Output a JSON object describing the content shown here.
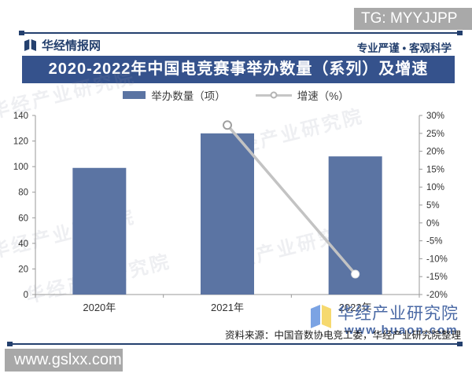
{
  "page": {
    "tg_badge": "TG: MYYJJPP",
    "corner_watermark": "www.gslxx.com"
  },
  "header": {
    "brand": "华经情报网",
    "tagline": "专业严谨 • 客观科学"
  },
  "title": "2020-2022年中国电竞赛事举办数量（系列）及增速",
  "legend": {
    "bar_label": "举办数量（项）",
    "line_label": "增速（%）"
  },
  "chart_data": {
    "type": "bar",
    "title": "2020-2022年中国电竞赛事举办数量（系列）及增速",
    "categories": [
      "2020年",
      "2021年",
      "2022年"
    ],
    "series": [
      {
        "name": "举办数量（项）",
        "type": "bar",
        "axis": "left",
        "color": "#5b74a3",
        "values": [
          99,
          126,
          108
        ]
      },
      {
        "name": "增速（%）",
        "type": "line",
        "axis": "right",
        "color": "#c3c3c3",
        "values": [
          null,
          27.3,
          -14.3
        ]
      }
    ],
    "left_axis": {
      "min": 0,
      "max": 140,
      "step": 20,
      "ticks": [
        0,
        20,
        40,
        60,
        80,
        100,
        120,
        140
      ]
    },
    "right_axis": {
      "min": -20,
      "max": 30,
      "step": 5,
      "ticks_top_down": [
        "30%",
        "25%",
        "20%",
        "15%",
        "10%",
        "5%",
        "0%",
        "-5%",
        "-10%",
        "-15%",
        "-20%"
      ]
    },
    "grid": false,
    "legend_position": "top"
  },
  "watermark": {
    "text": "华经产业研究院"
  },
  "footer": {
    "source": "资料来源：中国音数协电竞工委，华经产业研究院整理",
    "brand_name": "华经产业研究院",
    "brand_site": "www.huaon.com"
  },
  "colors": {
    "banner_bg": "#35528c",
    "bar": "#5b74a3",
    "line": "#c3c3c3",
    "navy": "#24406e",
    "brand_blue": "#4a69a5",
    "badge_gray": "#a9a9a9"
  }
}
